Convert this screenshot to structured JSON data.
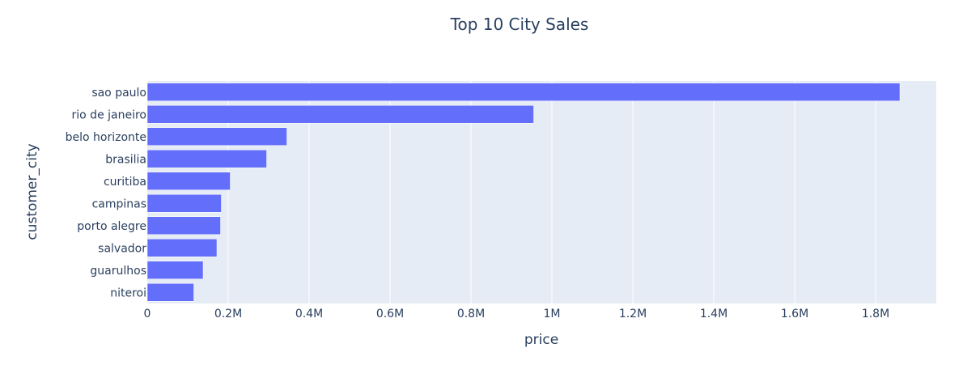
{
  "chart_data": {
    "type": "bar",
    "orientation": "horizontal",
    "title": "Top 10 City Sales",
    "xlabel": "price",
    "ylabel": "customer_city",
    "categories": [
      "sao paulo",
      "rio de janeiro",
      "belo horizonte",
      "brasilia",
      "curitiba",
      "campinas",
      "porto alegre",
      "salvador",
      "guarulhos",
      "niteroi"
    ],
    "values": [
      1860000,
      955000,
      345000,
      295000,
      205000,
      183000,
      181000,
      172000,
      138000,
      115000
    ],
    "xlim": [
      0,
      1950000
    ],
    "xticks": [
      0,
      200000,
      400000,
      600000,
      800000,
      1000000,
      1200000,
      1400000,
      1600000,
      1800000
    ],
    "xtick_labels": [
      "0",
      "0.2M",
      "0.4M",
      "0.6M",
      "0.8M",
      "1M",
      "1.2M",
      "1.4M",
      "1.6M",
      "1.8M"
    ],
    "grid": true,
    "colors": {
      "bar": "#636efa",
      "plot_bg": "#e5ecf6",
      "grid": "#ffffff",
      "text": "#2a3f5f"
    }
  }
}
